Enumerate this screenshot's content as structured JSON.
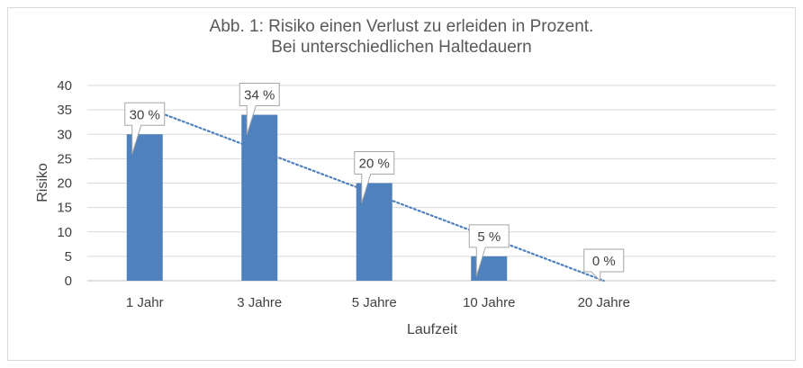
{
  "chart_data": {
    "type": "bar",
    "title_line1": "Abb. 1: Risiko einen Verlust zu erleiden in Prozent.",
    "title_line2": "Bei unterschiedlichen Haltedauern",
    "categories": [
      "1 Jahr",
      "3 Jahre",
      "5 Jahre",
      "10 Jahre",
      "20 Jahre"
    ],
    "values": [
      30,
      34,
      20,
      5,
      0
    ],
    "data_labels": [
      "30 %",
      "34 %",
      "20 %",
      "5 %",
      "0 %"
    ],
    "xlabel": "Laufzeit",
    "ylabel": "Risiko",
    "ylim": [
      0,
      40
    ],
    "yticks": [
      0,
      5,
      10,
      15,
      20,
      25,
      30,
      35,
      40
    ],
    "grid": true,
    "trendline": {
      "type": "linear",
      "style": "dotted"
    },
    "colors": {
      "bar": "#4f81bd",
      "trendline": "#4f81bd",
      "grid": "#d9d9d9"
    }
  }
}
